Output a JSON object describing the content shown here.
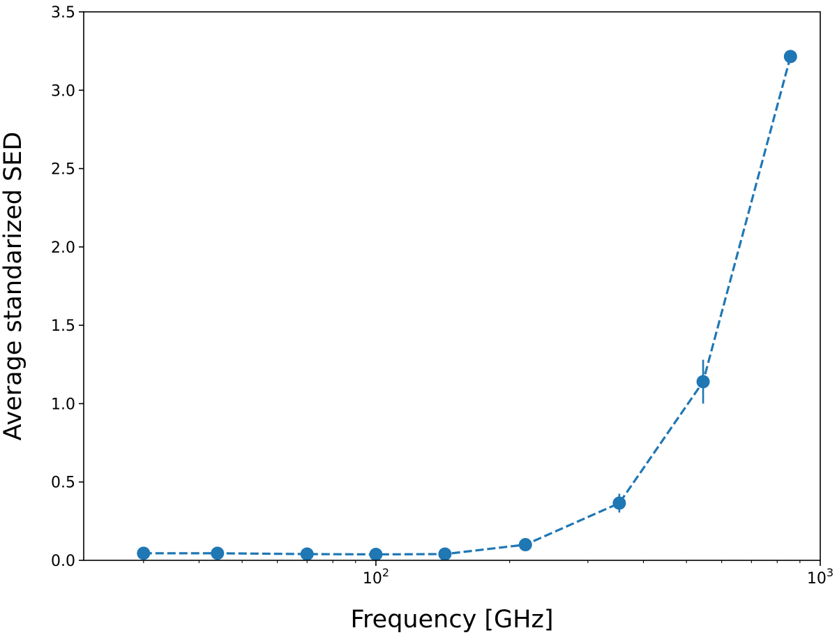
{
  "chart_data": {
    "type": "line",
    "title": "",
    "xlabel": "Frequency [GHz]",
    "ylabel": "Average standarized SED",
    "xscale": "log",
    "xlim": [
      22,
      1000
    ],
    "ylim": [
      0,
      3.5
    ],
    "x_major_ticks": [
      {
        "value": 100,
        "base": "10",
        "exp": "2"
      },
      {
        "value": 1000,
        "base": "10",
        "exp": "3"
      }
    ],
    "x_minor_ticks": [
      30,
      40,
      50,
      60,
      70,
      80,
      90,
      200,
      300,
      400,
      500,
      600,
      700,
      800,
      900
    ],
    "y_ticks": [
      {
        "value": 0.0,
        "label": "0.0"
      },
      {
        "value": 0.5,
        "label": "0.5"
      },
      {
        "value": 1.0,
        "label": "1.0"
      },
      {
        "value": 1.5,
        "label": "1.5"
      },
      {
        "value": 2.0,
        "label": "2.0"
      },
      {
        "value": 2.5,
        "label": "2.5"
      },
      {
        "value": 3.0,
        "label": "3.0"
      },
      {
        "value": 3.5,
        "label": "3.5"
      }
    ],
    "grid": false,
    "color": "#1f77b4",
    "line_style": "dashed",
    "series": [
      {
        "x": [
          30,
          44,
          70,
          100,
          143,
          217,
          353,
          545,
          857
        ],
        "y": [
          0.045,
          0.045,
          0.04,
          0.038,
          0.04,
          0.1,
          0.365,
          1.14,
          3.215
        ],
        "yerr": [
          0.02,
          0.02,
          0.01,
          0.01,
          0.01,
          0.015,
          0.06,
          0.14,
          0.02
        ]
      }
    ]
  }
}
